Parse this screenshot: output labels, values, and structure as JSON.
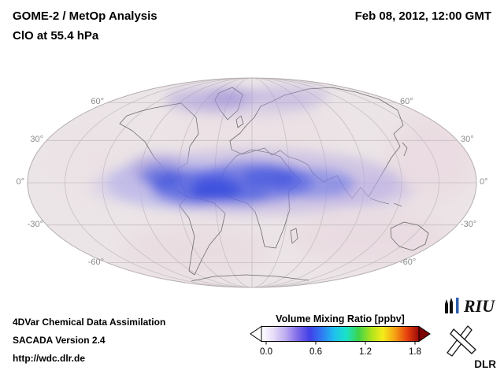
{
  "header": {
    "title_line1": "GOME-2 / MetOp Analysis",
    "title_line2": "ClO at 55.4 hPa",
    "timestamp": "Feb 08, 2012, 12:00 GMT"
  },
  "map": {
    "lat_labels_left": [
      "60°",
      "30°",
      "0°",
      "-30°",
      "-60°"
    ],
    "lat_labels_right": [
      "60°",
      "30°",
      "0°",
      "-30°",
      "-60°"
    ]
  },
  "colorbar": {
    "title": "Volume Mixing Ratio [ppbv]",
    "ticks": [
      "0.0",
      "0.6",
      "1.2",
      "1.8"
    ],
    "gradient_colors": [
      "#ffffff",
      "#e6dcf8",
      "#bcaaf0",
      "#7e6ae8",
      "#4040e8",
      "#2f7cf2",
      "#1fc0ee",
      "#1ae2c8",
      "#3cd44a",
      "#a8e21e",
      "#f4ec1a",
      "#f6a214",
      "#e8420e",
      "#9c0808"
    ],
    "left_arrow_color": "#ffffff",
    "right_arrow_color": "#7a0404"
  },
  "footer": {
    "line1": "4DVar Chemical Data Assimilation",
    "line2": "SACADA Version 2.4",
    "line3": "http://wdc.dlr.de"
  },
  "logos": {
    "riu_text": "RIU",
    "dlr_text": "DLR",
    "riu_accent_color": "#2e5fae"
  },
  "chart_data": {
    "type": "heatmap",
    "title": "GOME-2 / MetOp Analysis, ClO at 55.4 hPa",
    "timestamp": "Feb 08, 2012, 12:00 GMT",
    "projection": "Mollweide world map, central meridian 0°",
    "colorbar_label": "Volume Mixing Ratio [ppbv]",
    "colorbar_range": [
      0.0,
      2.0
    ],
    "colorbar_ticks": [
      0.0,
      0.6,
      1.2,
      1.8
    ],
    "lat_gridlines_deg": [
      60,
      30,
      0,
      -30,
      -60
    ],
    "regions": [
      {
        "area": "tropical Atlantic and central/northern Africa, about 15S-25N",
        "value_ppbv": "0.3-0.5 (blue core of band)"
      },
      {
        "area": "tropical band extending west to eastern Pacific and east to Arabian Sea / SE Asia",
        "value_ppbv": "0.1-0.3 (purple)"
      },
      {
        "area": "Arctic band near Greenland and Scandinavia",
        "value_ppbv": "0.1-0.2 (faint purple)"
      },
      {
        "area": "remaining globe",
        "value_ppbv": "near 0 (pale pink background)"
      }
    ]
  }
}
